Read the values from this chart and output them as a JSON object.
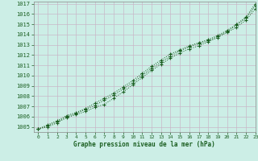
{
  "title": "Graphe pression niveau de la mer (hPa)",
  "bg_color": "#cceee6",
  "grid_color": "#c8b8c8",
  "line_color": "#1a5e20",
  "xlim": [
    -0.5,
    23
  ],
  "ylim": [
    1004.5,
    1017.2
  ],
  "yticks": [
    1005,
    1006,
    1007,
    1008,
    1009,
    1010,
    1011,
    1012,
    1013,
    1014,
    1015,
    1016,
    1017
  ],
  "xticks": [
    0,
    1,
    2,
    3,
    4,
    5,
    6,
    7,
    8,
    9,
    10,
    11,
    12,
    13,
    14,
    15,
    16,
    17,
    18,
    19,
    20,
    21,
    22,
    23
  ],
  "series1_y": [
    1004.8,
    1005.0,
    1005.4,
    1005.9,
    1006.2,
    1006.5,
    1006.9,
    1007.2,
    1007.8,
    1008.4,
    1009.1,
    1009.8,
    1010.5,
    1011.1,
    1011.7,
    1012.2,
    1012.6,
    1012.9,
    1013.3,
    1013.7,
    1014.2,
    1014.7,
    1015.4,
    1016.5
  ],
  "series2_y": [
    1004.8,
    1005.1,
    1005.5,
    1006.0,
    1006.3,
    1006.7,
    1007.1,
    1007.6,
    1008.1,
    1008.7,
    1009.3,
    1010.0,
    1010.7,
    1011.3,
    1011.9,
    1012.4,
    1012.8,
    1013.1,
    1013.4,
    1013.8,
    1014.3,
    1014.9,
    1015.6,
    1016.8
  ],
  "series3_y": [
    1004.8,
    1005.2,
    1005.6,
    1006.1,
    1006.4,
    1006.8,
    1007.3,
    1007.8,
    1008.3,
    1008.9,
    1009.5,
    1010.2,
    1010.9,
    1011.5,
    1012.1,
    1012.5,
    1012.9,
    1013.2,
    1013.5,
    1013.9,
    1014.4,
    1015.0,
    1015.7,
    1017.0
  ],
  "figsize": [
    3.2,
    2.0
  ],
  "dpi": 100
}
